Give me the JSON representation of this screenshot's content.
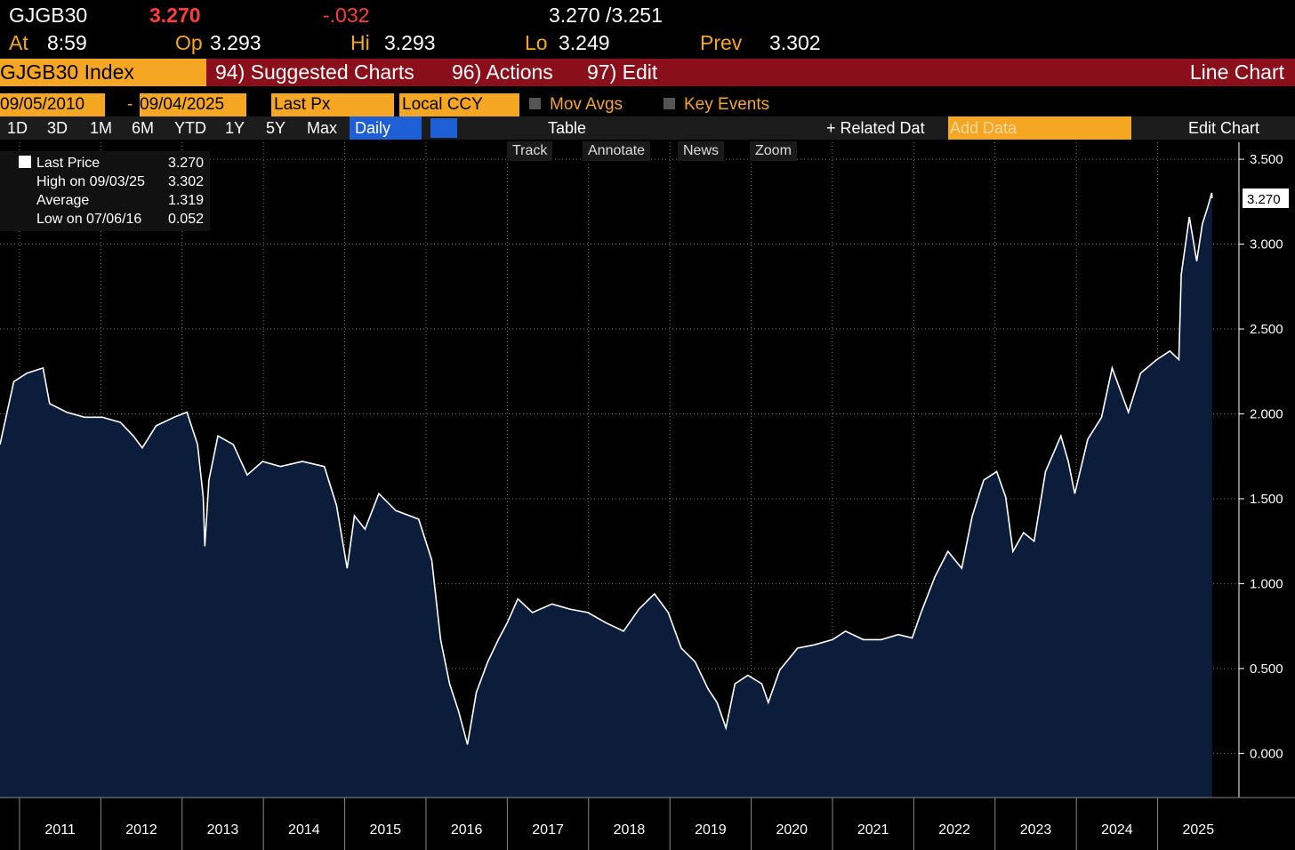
{
  "header": {
    "ticker": "GJGB30",
    "last": "3.270",
    "change": "-.032",
    "bid_ask": "3.270 /3.251",
    "time_label": "At",
    "time": "8:59",
    "open_label": "Op",
    "open": "3.293",
    "high_label": "Hi",
    "high": "3.293",
    "low_label": "Lo",
    "low": "3.249",
    "prev_label": "Prev",
    "prev": "3.302"
  },
  "toolbar": {
    "security": "GJGB30 Index",
    "menus": [
      "94) Suggested Charts",
      "96) Actions",
      "97) Edit"
    ],
    "view": "Line Chart"
  },
  "controls": {
    "start_date": "09/05/2010",
    "separator": "-",
    "end_date": "09/04/2025",
    "field": "Last Px",
    "currency": "Local CCY",
    "options": [
      "Mov Avgs",
      "Key Events"
    ]
  },
  "periods": [
    "1D",
    "3D",
    "1M",
    "6M",
    "YTD",
    "1Y",
    "5Y",
    "Max"
  ],
  "frequency": "Daily",
  "table": "Table",
  "related": "+ Related Dat",
  "add_data": "Add Data",
  "edit_chart": "Edit Chart",
  "tools": [
    "Track",
    "Annotate",
    "News",
    "Zoom"
  ],
  "chart_data": {
    "type": "line",
    "area": true,
    "grid": true,
    "x": [
      2010.76,
      2010.93,
      2011.09,
      2011.29,
      2011.37,
      2011.58,
      2011.8,
      2012.02,
      2012.24,
      2012.4,
      2012.51,
      2012.68,
      2012.9,
      2013.06,
      2013.19,
      2013.26,
      2013.28,
      2013.33,
      2013.44,
      2013.63,
      2013.8,
      2013.99,
      2014.21,
      2014.48,
      2014.75,
      2014.9,
      2015.03,
      2015.12,
      2015.25,
      2015.42,
      2015.63,
      2015.91,
      2016.07,
      2016.18,
      2016.29,
      2016.4,
      2016.51,
      2016.62,
      2016.76,
      2016.89,
      2017.0,
      2017.13,
      2017.31,
      2017.55,
      2017.77,
      2017.99,
      2018.21,
      2018.43,
      2018.62,
      2018.81,
      2018.98,
      2019.14,
      2019.31,
      2019.47,
      2019.58,
      2019.69,
      2019.8,
      2019.96,
      2020.13,
      2020.21,
      2020.35,
      2020.57,
      2020.78,
      2021.0,
      2021.16,
      2021.38,
      2021.6,
      2021.81,
      2021.98,
      2022.09,
      2022.26,
      2022.42,
      2022.59,
      2022.72,
      2022.86,
      2023.02,
      2023.13,
      2023.22,
      2023.35,
      2023.48,
      2023.62,
      2023.81,
      2023.9,
      2023.98,
      2024.14,
      2024.31,
      2024.44,
      2024.64,
      2024.79,
      2024.99,
      2025.15,
      2025.26,
      2025.29,
      2025.39,
      2025.48,
      2025.55,
      2025.61,
      2025.665,
      2025.67
    ],
    "series": [
      {
        "name": "Last Price",
        "color": "#ffffff",
        "fill": "#0b1d3a",
        "values": [
          1.82,
          2.19,
          2.24,
          2.27,
          2.06,
          2.01,
          1.98,
          1.98,
          1.95,
          1.87,
          1.8,
          1.93,
          1.98,
          2.01,
          1.82,
          1.51,
          1.22,
          1.61,
          1.87,
          1.82,
          1.64,
          1.72,
          1.69,
          1.72,
          1.69,
          1.46,
          1.09,
          1.4,
          1.32,
          1.53,
          1.43,
          1.38,
          1.14,
          0.67,
          0.41,
          0.25,
          0.052,
          0.36,
          0.54,
          0.67,
          0.77,
          0.91,
          0.83,
          0.88,
          0.85,
          0.83,
          0.77,
          0.72,
          0.85,
          0.94,
          0.83,
          0.62,
          0.54,
          0.38,
          0.3,
          0.15,
          0.41,
          0.46,
          0.41,
          0.3,
          0.49,
          0.62,
          0.64,
          0.67,
          0.72,
          0.67,
          0.67,
          0.7,
          0.68,
          0.83,
          1.04,
          1.19,
          1.09,
          1.4,
          1.61,
          1.66,
          1.51,
          1.19,
          1.3,
          1.25,
          1.66,
          1.87,
          1.72,
          1.53,
          1.85,
          1.98,
          2.27,
          2.01,
          2.24,
          2.32,
          2.37,
          2.32,
          2.82,
          3.16,
          2.9,
          3.12,
          3.21,
          3.302,
          3.27
        ]
      }
    ],
    "last_label": "3.270",
    "stats": [
      {
        "label": "High on 09/03/25",
        "value": "3.302"
      },
      {
        "label": "Average",
        "value": "1.319"
      },
      {
        "label": "Low on 07/06/16",
        "value": "0.052"
      }
    ],
    "xlim": [
      2010.76,
      2026.0
    ],
    "xticks": [
      2011,
      2012,
      2013,
      2014,
      2015,
      2016,
      2017,
      2018,
      2019,
      2020,
      2021,
      2022,
      2023,
      2024,
      2025
    ],
    "ylim": [
      -0.26,
      3.6
    ],
    "yticks": [
      {
        "value": 0,
        "label": "0.000"
      },
      {
        "value": 0.5,
        "label": "0.500"
      },
      {
        "value": 1,
        "label": "1.000"
      },
      {
        "value": 1.5,
        "label": "1.500"
      },
      {
        "value": 2,
        "label": "2.000"
      },
      {
        "value": 2.5,
        "label": "2.500"
      },
      {
        "value": 3,
        "label": "3.000"
      },
      {
        "value": 3.5,
        "label": "3.500"
      }
    ]
  }
}
